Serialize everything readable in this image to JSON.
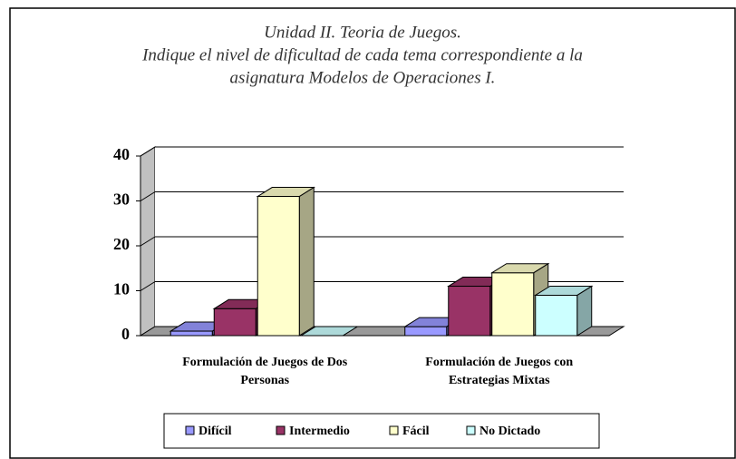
{
  "chart_data": {
    "type": "bar3d",
    "title": [
      "Unidad II. Teoria de Juegos.",
      "Indique el  nivel  de dificultad de cada tema correspondiente a la",
      "asignatura Modelos de Operaciones I."
    ],
    "categories": [
      "Formulación de Juegos de Dos Personas",
      "Formulación de Juegos con Estrategias Mixtas"
    ],
    "series": [
      {
        "name": "Difícil",
        "color": "#9999ff",
        "values": [
          1,
          2
        ]
      },
      {
        "name": "Intermedio",
        "color": "#993366",
        "values": [
          6,
          11
        ]
      },
      {
        "name": "Fácil",
        "color": "#ffffcc",
        "values": [
          31,
          14
        ]
      },
      {
        "name": "No Dictado",
        "color": "#ccffff",
        "values": [
          0,
          9
        ]
      }
    ],
    "ylim": [
      0,
      40
    ],
    "yticks": [
      0,
      10,
      20,
      30,
      40
    ],
    "grid": true,
    "legend": "bottom"
  }
}
